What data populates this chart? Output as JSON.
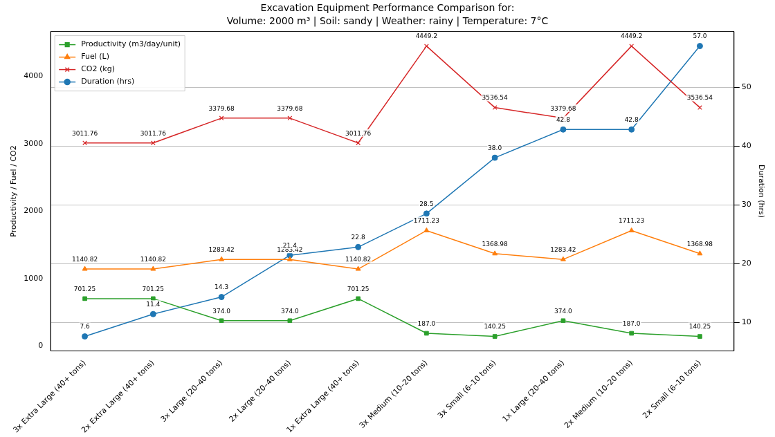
{
  "chart_data": {
    "type": "line",
    "title": "Excavation Equipment Performance Comparison for:",
    "subtitle": "Volume: 2000 m³ | Soil: sandy | Weather: rainy | Temperature: 7°C",
    "ylabel": "Productivity / Fuel / CO2",
    "y2label": "Duration (hrs)",
    "categories": [
      "3x Extra Large (40+ tons)",
      "2x Extra Large (40+ tons)",
      "3x Large (20–40 tons)",
      "2x Large (20–40 tons)",
      "1x Extra Large (40+ tons)",
      "3x Medium (10–20 tons)",
      "3x Small (6–10 tons)",
      "1x Large (20–40 tons)",
      "2x Medium (10–20 tons)",
      "2x Small (6–10 tons)"
    ],
    "series": [
      {
        "name": "Productivity (m3/day/unit)",
        "color": "#2ca02c",
        "marker": "square",
        "values": [
          701.25,
          701.25,
          374.0,
          374.0,
          701.25,
          187.0,
          140.25,
          374.0,
          187.0,
          140.25
        ],
        "value_labels": [
          "701.25",
          "701.25",
          "374.0",
          "374.0",
          "701.25",
          "187.0",
          "140.25",
          "374.0",
          "187.0",
          "140.25"
        ]
      },
      {
        "name": "Fuel (L)",
        "color": "#ff7f0e",
        "marker": "triangle",
        "values": [
          1140.82,
          1140.82,
          1283.42,
          1283.42,
          1140.82,
          1711.23,
          1368.98,
          1283.42,
          1711.23,
          1368.98
        ],
        "value_labels": [
          "1140.82",
          "1140.82",
          "1283.42",
          "1283.42",
          "1140.82",
          "1711.23",
          "1368.98",
          "1283.42",
          "1711.23",
          "1368.98"
        ]
      },
      {
        "name": "CO2 (kg)",
        "color": "#d62728",
        "marker": "cross",
        "values": [
          3011.76,
          3011.76,
          3379.68,
          3379.68,
          3011.76,
          4449.2,
          3536.54,
          3379.68,
          4449.2,
          3536.54
        ],
        "value_labels": [
          "3011.76",
          "3011.76",
          "3379.68",
          "3379.68",
          "3011.76",
          "4449.2",
          "3536.54",
          "3379.68",
          "4449.2",
          "3536.54"
        ]
      },
      {
        "name": "Duration (hrs)",
        "color": "#1f77b4",
        "marker": "circle",
        "axis": "y2",
        "values": [
          7.6,
          11.4,
          14.3,
          21.4,
          22.8,
          28.5,
          38.0,
          42.8,
          42.8,
          57.0
        ],
        "value_labels": [
          "7.6",
          "11.4",
          "14.3",
          "21.4",
          "22.8",
          "28.5",
          "38.0",
          "42.8",
          "42.8",
          "57.0"
        ]
      }
    ],
    "ylim": [
      -75,
      4665
    ],
    "yticks": [
      0,
      1000,
      2000,
      3000,
      4000
    ],
    "y2lim": [
      5.13,
      59.47
    ],
    "y2ticks": [
      10,
      20,
      30,
      40,
      50
    ],
    "grid": "y2",
    "legend": "top left",
    "line_style": "solid"
  }
}
